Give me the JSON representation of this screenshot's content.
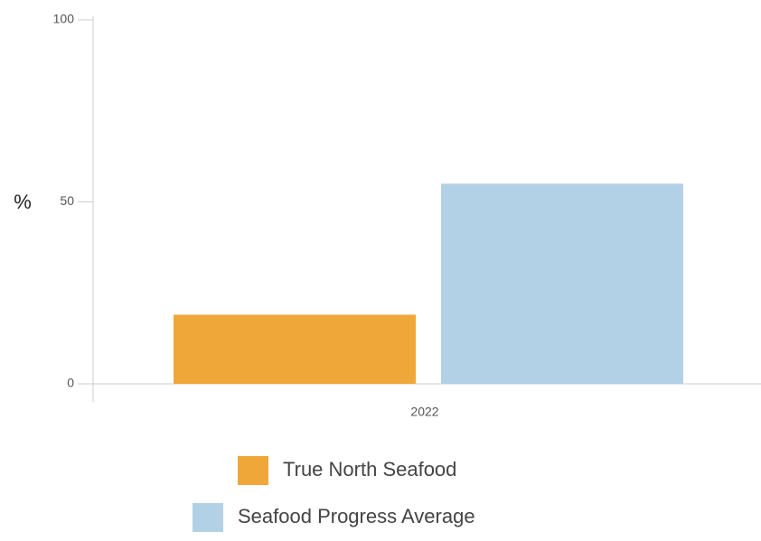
{
  "chart_data": {
    "type": "bar",
    "y_label": "%",
    "categories": [
      "2022"
    ],
    "series": [
      {
        "name": "True North Seafood",
        "color": "#f0a73a",
        "values": [
          19
        ]
      },
      {
        "name": "Seafood Progress Average",
        "color": "#b3d1e6",
        "values": [
          55
        ]
      }
    ],
    "ylim": [
      0,
      100
    ],
    "yticks": [
      0,
      50,
      100
    ],
    "grid": false
  }
}
